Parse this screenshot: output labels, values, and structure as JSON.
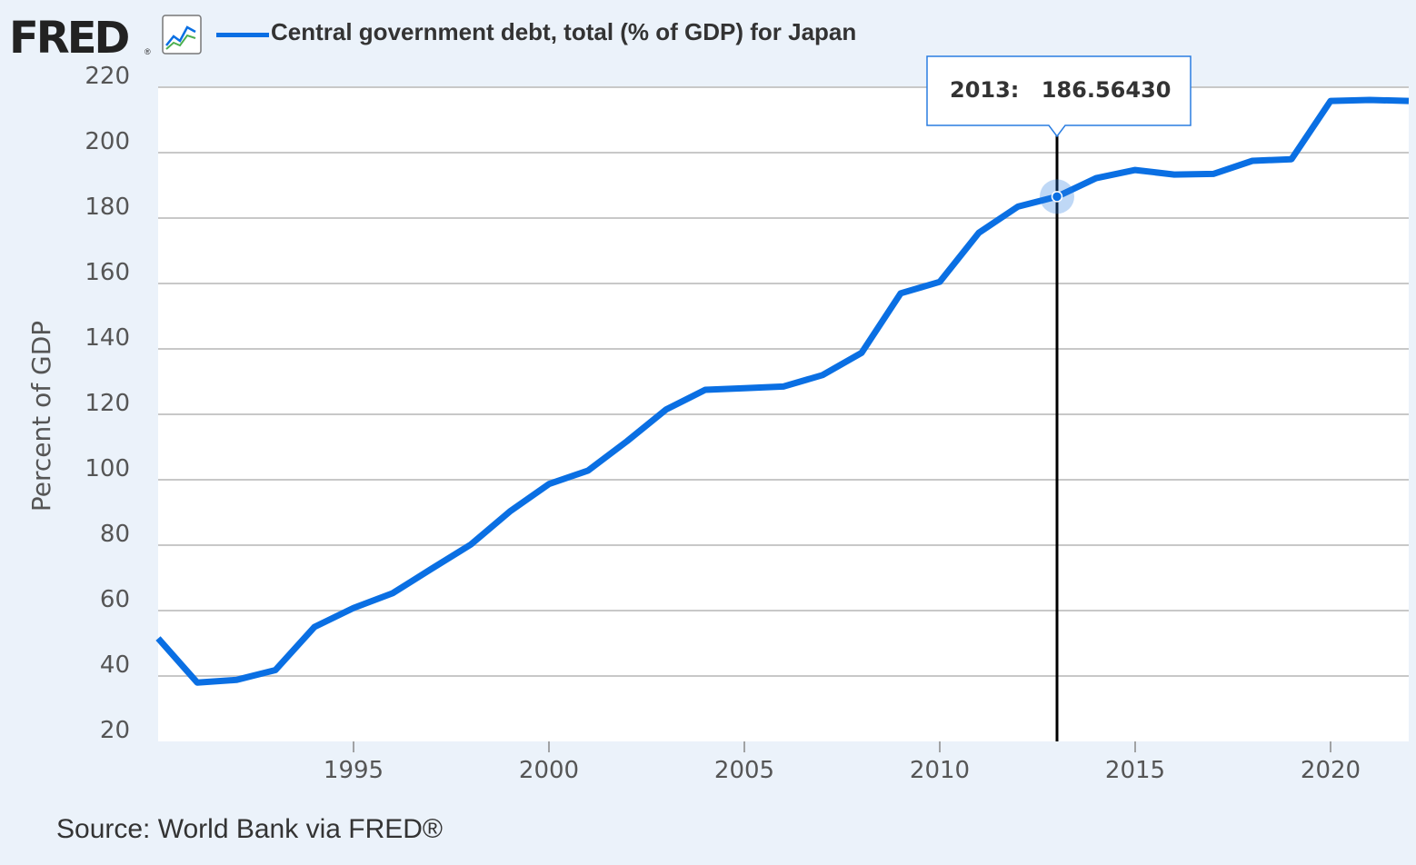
{
  "header": {
    "logo_text": "FRED",
    "logo_mark": "®",
    "graph_icon": "line-chart-icon",
    "series_title": "Central government debt, total (% of GDP) for Japan"
  },
  "colors": {
    "series": "#0a6fe3",
    "background": "#ebf2fa",
    "plot": "#ffffff",
    "grid": "#c8c8c8"
  },
  "tooltip": {
    "year": "2013:",
    "value": "186.56430"
  },
  "source": "Source: World Bank via FRED®",
  "chart_data": {
    "type": "line",
    "title": "Central government debt, total (% of GDP) for Japan",
    "xlabel": "",
    "ylabel": "Percent of GDP",
    "xlim": [
      1990,
      2022
    ],
    "ylim": [
      20,
      220
    ],
    "yticks": [
      20,
      40,
      60,
      80,
      100,
      120,
      140,
      160,
      180,
      200,
      220
    ],
    "xticks": [
      1995,
      2000,
      2005,
      2010,
      2015,
      2020
    ],
    "grid": true,
    "legend": "top-left",
    "highlight": {
      "x": 2013,
      "y": 186.5643
    },
    "series": [
      {
        "name": "Central government debt, total (% of GDP) for Japan",
        "x": [
          1990,
          1991,
          1992,
          1993,
          1994,
          1995,
          1996,
          1997,
          1998,
          1999,
          2000,
          2001,
          2002,
          2003,
          2004,
          2005,
          2006,
          2007,
          2008,
          2009,
          2010,
          2011,
          2012,
          2013,
          2014,
          2015,
          2016,
          2017,
          2018,
          2019,
          2020,
          2021,
          2022
        ],
        "values": [
          51.5,
          38.0,
          38.8,
          41.8,
          55.0,
          60.8,
          65.3,
          72.8,
          80.2,
          90.3,
          98.7,
          102.8,
          111.8,
          121.5,
          127.5,
          128.0,
          128.5,
          132.0,
          138.8,
          157.0,
          160.5,
          175.5,
          183.5,
          186.5643,
          192.2,
          194.7,
          193.3,
          193.5,
          197.5,
          198.0,
          215.8,
          216.1,
          215.8
        ]
      }
    ]
  }
}
